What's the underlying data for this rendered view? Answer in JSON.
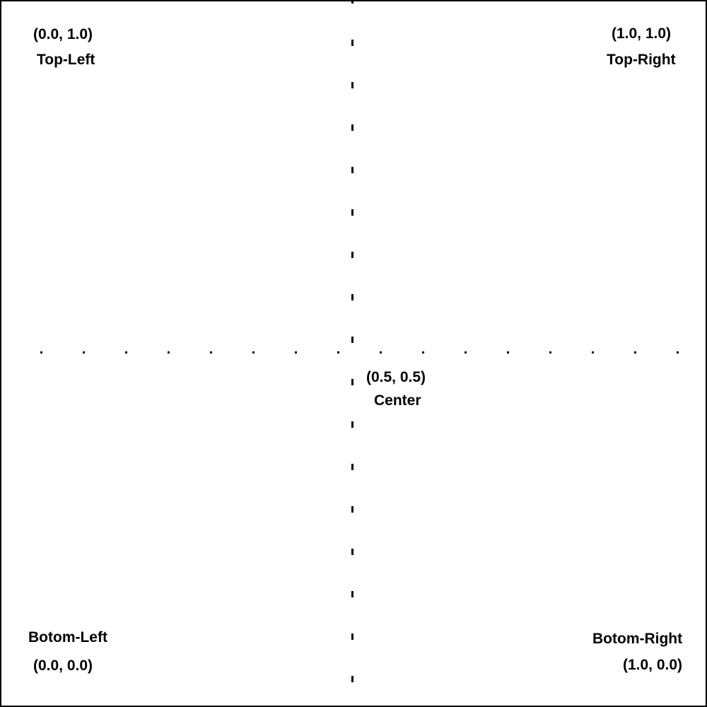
{
  "labels": {
    "top_left": {
      "coord": "(0.0, 1.0)",
      "name": "Top-Left"
    },
    "top_right": {
      "coord": "(1.0, 1.0)",
      "name": "Top-Right"
    },
    "center": {
      "coord": "(0.5, 0.5)",
      "name": "Center"
    },
    "bottom_left": {
      "coord": "(0.0, 0.0)",
      "name": "Botom-Left"
    },
    "bottom_right": {
      "coord": "(1.0, 0.0)",
      "name": "Botom-Right"
    }
  },
  "colors": {
    "ink": "#000000",
    "background": "#ffffff"
  }
}
